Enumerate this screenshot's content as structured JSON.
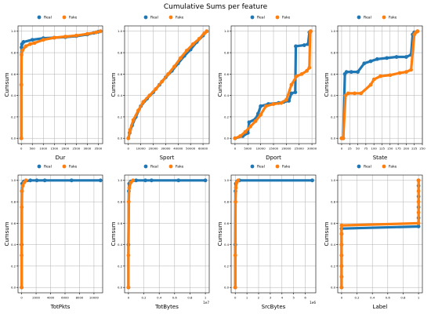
{
  "title": "Cumulative Sums per feature",
  "colors": {
    "real": "#1f77b4",
    "fake": "#ff7f0e",
    "grid": "#b0b0b0"
  },
  "legend": {
    "entries": [
      "Real",
      "Fake"
    ],
    "placement": "top-center"
  },
  "chart_data": [
    {
      "type": "scatter",
      "xlabel": "Dur",
      "ylabel": "Cumsum",
      "grid": true,
      "xlim": [
        -150,
        3700
      ],
      "ylim": [
        -0.05,
        1.05
      ],
      "xticks": [
        0,
        500,
        1000,
        1500,
        2000,
        2500,
        3000,
        3500
      ],
      "yticks": [
        0.0,
        0.2,
        0.4,
        0.6,
        0.8,
        1.0
      ],
      "x_offset_text": "",
      "series": [
        {
          "name": "Real",
          "points": [
            [
              0,
              0
            ],
            [
              0,
              0.5
            ],
            [
              10,
              0.85
            ],
            [
              30,
              0.88
            ],
            [
              100,
              0.9
            ],
            [
              500,
              0.92
            ],
            [
              1000,
              0.935
            ],
            [
              1500,
              0.94
            ],
            [
              2000,
              0.945
            ],
            [
              2500,
              0.955
            ],
            [
              3000,
              0.97
            ],
            [
              3300,
              0.985
            ],
            [
              3500,
              0.995
            ],
            [
              3600,
              1.0
            ]
          ]
        },
        {
          "name": "Fake",
          "points": [
            [
              0,
              0
            ],
            [
              0,
              0.5
            ],
            [
              10,
              0.78
            ],
            [
              50,
              0.82
            ],
            [
              200,
              0.86
            ],
            [
              400,
              0.88
            ],
            [
              600,
              0.89
            ],
            [
              1000,
              0.92
            ],
            [
              1500,
              0.94
            ],
            [
              2000,
              0.95
            ],
            [
              2500,
              0.96
            ],
            [
              3000,
              0.975
            ],
            [
              3400,
              0.99
            ],
            [
              3600,
              1.0
            ]
          ]
        }
      ]
    },
    {
      "type": "scatter",
      "xlabel": "Sport",
      "ylabel": "Cumsum",
      "grid": true,
      "xlim": [
        -3000,
        65000
      ],
      "ylim": [
        -0.05,
        1.05
      ],
      "xticks": [
        0,
        10000,
        20000,
        30000,
        40000,
        50000,
        60000
      ],
      "yticks": [
        0.0,
        0.2,
        0.4,
        0.6,
        0.8,
        1.0
      ],
      "x_offset_text": "",
      "series": [
        {
          "name": "Real",
          "points": [
            [
              0,
              0
            ],
            [
              1000,
              0.05
            ],
            [
              3000,
              0.12
            ],
            [
              6000,
              0.2
            ],
            [
              10000,
              0.3
            ],
            [
              15000,
              0.37
            ],
            [
              20000,
              0.43
            ],
            [
              25000,
              0.5
            ],
            [
              30000,
              0.57
            ],
            [
              35000,
              0.63
            ],
            [
              40000,
              0.7
            ],
            [
              45000,
              0.77
            ],
            [
              50000,
              0.83
            ],
            [
              55000,
              0.9
            ],
            [
              60000,
              0.96
            ],
            [
              63000,
              1.0
            ]
          ]
        },
        {
          "name": "Fake",
          "points": [
            [
              0,
              0
            ],
            [
              1500,
              0.08
            ],
            [
              4000,
              0.17
            ],
            [
              8000,
              0.26
            ],
            [
              12000,
              0.34
            ],
            [
              17000,
              0.4
            ],
            [
              22000,
              0.46
            ],
            [
              27000,
              0.53
            ],
            [
              32000,
              0.6
            ],
            [
              37000,
              0.67
            ],
            [
              42000,
              0.75
            ],
            [
              47000,
              0.82
            ],
            [
              52000,
              0.88
            ],
            [
              57000,
              0.93
            ],
            [
              61000,
              0.98
            ],
            [
              63000,
              1.0
            ]
          ]
        }
      ]
    },
    {
      "type": "scatter",
      "xlabel": "Dport",
      "ylabel": "Cumsum",
      "grid": true,
      "xlim": [
        -1500,
        31500
      ],
      "ylim": [
        -0.05,
        1.05
      ],
      "xticks": [
        0,
        5000,
        10000,
        15000,
        20000,
        25000,
        30000
      ],
      "yticks": [
        0.0,
        0.2,
        0.4,
        0.6,
        0.8,
        1.0
      ],
      "x_offset_text": "",
      "series": [
        {
          "name": "Real",
          "points": [
            [
              0,
              0
            ],
            [
              3000,
              0.02
            ],
            [
              5000,
              0.05
            ],
            [
              5500,
              0.15
            ],
            [
              8000,
              0.18
            ],
            [
              9000,
              0.23
            ],
            [
              10000,
              0.3
            ],
            [
              13000,
              0.32
            ],
            [
              17000,
              0.33
            ],
            [
              19000,
              0.34
            ],
            [
              21000,
              0.35
            ],
            [
              22000,
              0.42
            ],
            [
              23500,
              0.43
            ],
            [
              23700,
              0.86
            ],
            [
              27000,
              0.87
            ],
            [
              28500,
              0.88
            ],
            [
              29000,
              0.99
            ],
            [
              29500,
              1.0
            ]
          ]
        },
        {
          "name": "Fake",
          "points": [
            [
              0,
              0
            ],
            [
              2000,
              0.02
            ],
            [
              4000,
              0.06
            ],
            [
              6000,
              0.11
            ],
            [
              8000,
              0.16
            ],
            [
              10000,
              0.22
            ],
            [
              12000,
              0.3
            ],
            [
              15000,
              0.32
            ],
            [
              18000,
              0.33
            ],
            [
              20000,
              0.36
            ],
            [
              22000,
              0.5
            ],
            [
              24000,
              0.58
            ],
            [
              26000,
              0.6
            ],
            [
              28000,
              0.63
            ],
            [
              29000,
              0.66
            ],
            [
              29300,
              0.99
            ],
            [
              29500,
              1.0
            ]
          ]
        }
      ]
    },
    {
      "type": "scatter",
      "xlabel": "State",
      "ylabel": "Cumsum",
      "grid": true,
      "xlim": [
        -12,
        250
      ],
      "ylim": [
        -0.05,
        1.05
      ],
      "xticks": [
        0,
        25,
        50,
        75,
        100,
        125,
        150,
        175,
        200,
        225,
        250
      ],
      "yticks": [
        0.0,
        0.2,
        0.4,
        0.6,
        0.8,
        1.0
      ],
      "x_offset_text": "",
      "series": [
        {
          "name": "Real",
          "points": [
            [
              0,
              0
            ],
            [
              5,
              0
            ],
            [
              10,
              0.6
            ],
            [
              15,
              0.62
            ],
            [
              30,
              0.62
            ],
            [
              50,
              0.62
            ],
            [
              70,
              0.7
            ],
            [
              90,
              0.72
            ],
            [
              110,
              0.74
            ],
            [
              140,
              0.75
            ],
            [
              170,
              0.76
            ],
            [
              200,
              0.76
            ],
            [
              215,
              0.78
            ],
            [
              220,
              0.97
            ],
            [
              225,
              0.99
            ],
            [
              235,
              1.0
            ]
          ]
        },
        {
          "name": "Fake",
          "points": [
            [
              0,
              0
            ],
            [
              5,
              0
            ],
            [
              12,
              0.4
            ],
            [
              20,
              0.42
            ],
            [
              40,
              0.42
            ],
            [
              60,
              0.42
            ],
            [
              90,
              0.5
            ],
            [
              100,
              0.55
            ],
            [
              120,
              0.58
            ],
            [
              150,
              0.59
            ],
            [
              180,
              0.61
            ],
            [
              200,
              0.62
            ],
            [
              215,
              0.64
            ],
            [
              225,
              0.97
            ],
            [
              230,
              0.99
            ],
            [
              235,
              1.0
            ]
          ]
        }
      ]
    },
    {
      "type": "scatter",
      "xlabel": "TotPkts",
      "ylabel": "Cumsum",
      "grid": true,
      "xlim": [
        -500,
        11200
      ],
      "ylim": [
        -0.05,
        1.05
      ],
      "xticks": [
        0,
        2000,
        4000,
        6000,
        8000,
        10000
      ],
      "yticks": [
        0.0,
        0.2,
        0.4,
        0.6,
        0.8,
        1.0
      ],
      "x_offset_text": "",
      "series": [
        {
          "name": "Real",
          "points": [
            [
              0,
              0
            ],
            [
              0,
              0.4
            ],
            [
              30,
              0.9
            ],
            [
              80,
              0.97
            ],
            [
              300,
              0.99
            ],
            [
              1200,
              1.0
            ],
            [
              2100,
              1.0
            ],
            [
              3200,
              1.0
            ],
            [
              6900,
              1.0
            ],
            [
              10900,
              1.0
            ]
          ]
        },
        {
          "name": "Fake",
          "points": [
            [
              0,
              0
            ],
            [
              0,
              0.3
            ],
            [
              20,
              0.75
            ],
            [
              60,
              0.9
            ],
            [
              150,
              0.95
            ],
            [
              350,
              0.98
            ],
            [
              600,
              1.0
            ]
          ]
        }
      ]
    },
    {
      "type": "scatter",
      "xlabel": "TotBytes",
      "ylabel": "Cumsum",
      "grid": true,
      "xlim": [
        -0.05,
        1.05
      ],
      "ylim": [
        -0.05,
        1.05
      ],
      "xticks": [
        0.0,
        0.2,
        0.4,
        0.6,
        0.8,
        1.0
      ],
      "yticks": [
        0.0,
        0.2,
        0.4,
        0.6,
        0.8,
        1.0
      ],
      "x_offset_text": "1e7",
      "series": [
        {
          "name": "Real",
          "points": [
            [
              0,
              0
            ],
            [
              0,
              0.4
            ],
            [
              0.005,
              0.9
            ],
            [
              0.01,
              0.97
            ],
            [
              0.03,
              0.99
            ],
            [
              0.1,
              1.0
            ],
            [
              0.22,
              1.0
            ],
            [
              0.3,
              1.0
            ],
            [
              0.65,
              1.0
            ],
            [
              1.0,
              1.0
            ]
          ]
        },
        {
          "name": "Fake",
          "points": [
            [
              0,
              0
            ],
            [
              0,
              0.3
            ],
            [
              0.004,
              0.8
            ],
            [
              0.01,
              0.93
            ],
            [
              0.03,
              0.98
            ],
            [
              0.06,
              1.0
            ]
          ]
        }
      ]
    },
    {
      "type": "scatter",
      "xlabel": "SrcBytes",
      "ylabel": "Cumsum",
      "grid": true,
      "xlim": [
        -0.35,
        6.9
      ],
      "ylim": [
        -0.05,
        1.05
      ],
      "xticks": [
        0,
        1,
        2,
        3,
        4,
        5,
        6
      ],
      "yticks": [
        0.0,
        0.2,
        0.4,
        0.6,
        0.8,
        1.0
      ],
      "x_offset_text": "1e6",
      "series": [
        {
          "name": "Real",
          "points": [
            [
              0,
              0
            ],
            [
              0,
              0.4
            ],
            [
              0.02,
              0.9
            ],
            [
              0.05,
              0.97
            ],
            [
              0.15,
              0.99
            ],
            [
              0.35,
              1.0
            ],
            [
              6.6,
              1.0
            ]
          ]
        },
        {
          "name": "Fake",
          "points": [
            [
              0,
              0
            ],
            [
              0,
              0.3
            ],
            [
              0.02,
              0.8
            ],
            [
              0.05,
              0.93
            ],
            [
              0.12,
              0.98
            ],
            [
              0.25,
              1.0
            ]
          ]
        }
      ]
    },
    {
      "type": "scatter",
      "xlabel": "Label",
      "ylabel": "Cumsum",
      "grid": true,
      "xlim": [
        -0.05,
        1.05
      ],
      "ylim": [
        -0.05,
        1.05
      ],
      "xticks": [
        0.0,
        0.2,
        0.4,
        0.6,
        0.8,
        1.0
      ],
      "yticks": [
        0.0,
        0.2,
        0.4,
        0.6,
        0.8,
        1.0
      ],
      "x_offset_text": "",
      "series": [
        {
          "name": "Real",
          "points": [
            [
              0,
              0
            ],
            [
              0,
              0.1
            ],
            [
              0,
              0.2
            ],
            [
              0,
              0.3
            ],
            [
              0,
              0.4
            ],
            [
              0,
              0.5
            ],
            [
              0,
              0.55
            ],
            [
              1,
              0.57
            ],
            [
              1,
              0.65
            ],
            [
              1,
              0.75
            ],
            [
              1,
              0.85
            ],
            [
              1,
              0.95
            ],
            [
              1,
              1.0
            ]
          ]
        },
        {
          "name": "Fake",
          "points": [
            [
              0,
              0
            ],
            [
              0,
              0.1
            ],
            [
              0,
              0.2
            ],
            [
              0,
              0.3
            ],
            [
              0,
              0.4
            ],
            [
              0,
              0.5
            ],
            [
              0,
              0.58
            ],
            [
              1,
              0.6
            ],
            [
              1,
              0.7
            ],
            [
              1,
              0.8
            ],
            [
              1,
              0.9
            ],
            [
              1,
              1.0
            ]
          ]
        }
      ]
    }
  ]
}
